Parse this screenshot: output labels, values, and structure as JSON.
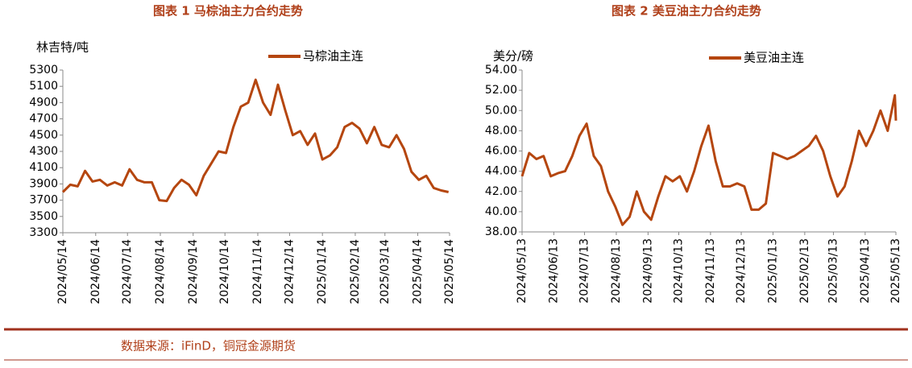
{
  "chart_data": [
    {
      "type": "line",
      "title": "图表 1  马棕油主力合约走势",
      "y_label": "林吉特/吨",
      "x": [
        "2024/05/14",
        "2024/05/21",
        "2024/05/28",
        "2024/06/04",
        "2024/06/11",
        "2024/06/18",
        "2024/06/25",
        "2024/07/02",
        "2024/07/09",
        "2024/07/16",
        "2024/07/23",
        "2024/07/30",
        "2024/08/06",
        "2024/08/13",
        "2024/08/20",
        "2024/08/27",
        "2024/09/03",
        "2024/09/10",
        "2024/09/17",
        "2024/09/24",
        "2024/10/01",
        "2024/10/08",
        "2024/10/15",
        "2024/10/22",
        "2024/10/29",
        "2024/11/05",
        "2024/11/12",
        "2024/11/19",
        "2024/11/26",
        "2024/12/03",
        "2024/12/10",
        "2024/12/17",
        "2024/12/24",
        "2024/12/31",
        "2025/01/07",
        "2025/01/14",
        "2025/01/21",
        "2025/01/28",
        "2025/02/04",
        "2025/02/11",
        "2025/02/18",
        "2025/02/25",
        "2025/03/04",
        "2025/03/11",
        "2025/03/18",
        "2025/03/25",
        "2025/04/01",
        "2025/04/08",
        "2025/04/15",
        "2025/04/22",
        "2025/04/29",
        "2025/05/06",
        "2025/05/13"
      ],
      "series": [
        {
          "name": "马棕油主连",
          "color": "#b5460f",
          "values": [
            3800,
            3890,
            3870,
            4060,
            3930,
            3950,
            3880,
            3920,
            3880,
            4080,
            3950,
            3920,
            3920,
            3700,
            3690,
            3850,
            3950,
            3890,
            3760,
            4000,
            4150,
            4300,
            4280,
            4600,
            4850,
            4900,
            5180,
            4900,
            4750,
            5120,
            4800,
            4500,
            4550,
            4380,
            4520,
            4200,
            4250,
            4350,
            4600,
            4650,
            4580,
            4400,
            4600,
            4380,
            4350,
            4500,
            4330,
            4050,
            3950,
            4000,
            3850,
            3820,
            3800
          ]
        }
      ],
      "xlim": [
        "2024/05/14",
        "2025/05/14"
      ],
      "xticks": [
        "2024/05/14",
        "2024/06/14",
        "2024/07/14",
        "2024/08/14",
        "2024/09/14",
        "2024/10/14",
        "2024/11/14",
        "2024/12/14",
        "2025/01/14",
        "2025/02/14",
        "2025/03/14",
        "2025/04/14",
        "2025/05/14"
      ],
      "ylim": [
        3300,
        5300
      ],
      "yticks": [
        3300,
        3500,
        3700,
        3900,
        4100,
        4300,
        4500,
        4700,
        4900,
        5100,
        5300
      ],
      "grid": false,
      "legend": "top"
    },
    {
      "type": "line",
      "title": "图表 2  美豆油主力合约走势",
      "y_label": "美分/磅",
      "x": [
        "2024/05/13",
        "2024/05/20",
        "2024/05/27",
        "2024/06/03",
        "2024/06/10",
        "2024/06/17",
        "2024/06/24",
        "2024/07/01",
        "2024/07/08",
        "2024/07/15",
        "2024/07/22",
        "2024/07/29",
        "2024/08/05",
        "2024/08/12",
        "2024/08/19",
        "2024/08/26",
        "2024/09/02",
        "2024/09/09",
        "2024/09/16",
        "2024/09/23",
        "2024/09/30",
        "2024/10/07",
        "2024/10/14",
        "2024/10/21",
        "2024/10/28",
        "2024/11/04",
        "2024/11/11",
        "2024/11/18",
        "2024/11/25",
        "2024/12/02",
        "2024/12/09",
        "2024/12/16",
        "2024/12/23",
        "2024/12/30",
        "2025/01/06",
        "2025/01/13",
        "2025/01/20",
        "2025/01/27",
        "2025/02/03",
        "2025/02/10",
        "2025/02/17",
        "2025/02/24",
        "2025/03/03",
        "2025/03/10",
        "2025/03/17",
        "2025/03/24",
        "2025/03/31",
        "2025/04/07",
        "2025/04/14",
        "2025/04/21",
        "2025/04/28",
        "2025/05/05",
        "2025/05/12",
        "2025/05/13"
      ],
      "series": [
        {
          "name": "美豆油主连",
          "color": "#b5460f",
          "values": [
            43.5,
            45.8,
            45.2,
            45.5,
            43.5,
            43.8,
            44.0,
            45.5,
            47.5,
            48.7,
            45.5,
            44.5,
            42.0,
            40.5,
            38.7,
            39.5,
            42.0,
            40.0,
            39.2,
            41.5,
            43.5,
            43.0,
            43.5,
            42.0,
            44.0,
            46.5,
            48.5,
            45.0,
            42.5,
            42.5,
            42.8,
            42.5,
            40.2,
            40.2,
            40.8,
            45.8,
            45.5,
            45.2,
            45.5,
            46.0,
            46.5,
            47.5,
            46.0,
            43.5,
            41.5,
            42.5,
            45.0,
            48.0,
            46.5,
            48.0,
            50.0,
            48.0,
            51.5,
            49.0
          ]
        }
      ],
      "xlim": [
        "2024/05/13",
        "2025/05/13"
      ],
      "xticks": [
        "2024/05/13",
        "2024/06/13",
        "2024/07/13",
        "2024/08/13",
        "2024/09/13",
        "2024/10/13",
        "2024/11/13",
        "2024/12/13",
        "2025/01/13",
        "2025/02/13",
        "2025/03/13",
        "2025/04/13",
        "2025/05/13"
      ],
      "ylim": [
        38,
        54
      ],
      "yticks": [
        {
          "value": 38,
          "label": "38.00"
        },
        {
          "value": 40,
          "label": "40.00"
        },
        {
          "value": 42,
          "label": "42.00"
        },
        {
          "value": 44,
          "label": "44.00"
        },
        {
          "value": 46,
          "label": "46.00"
        },
        {
          "value": 48,
          "label": "48.00"
        },
        {
          "value": 50,
          "label": "50.00"
        },
        {
          "value": 52,
          "label": "52.00"
        },
        {
          "value": 54,
          "label": "54.00"
        }
      ],
      "grid": false,
      "legend": "top"
    }
  ],
  "source": "数据来源：iFinD，铜冠金源期货"
}
